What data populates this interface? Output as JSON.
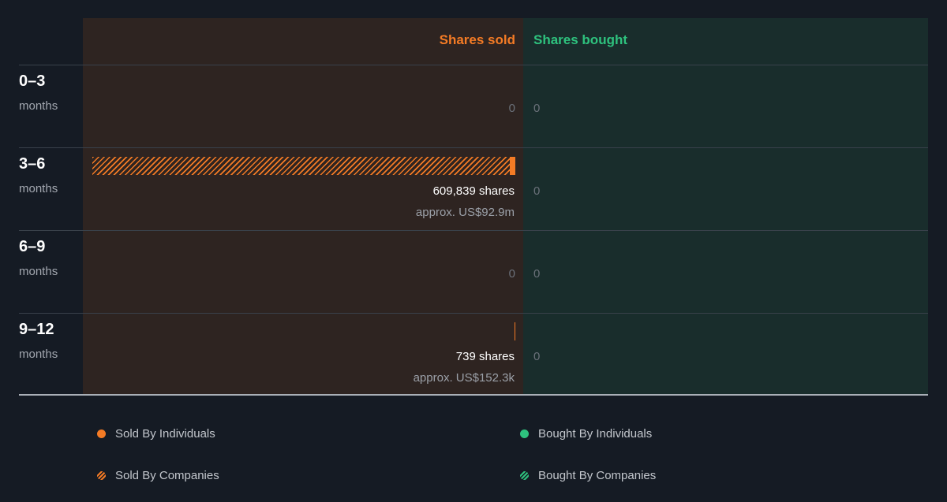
{
  "header": {
    "sold": "Shares sold",
    "bought": "Shares bought"
  },
  "colors": {
    "sold": "#f47b25",
    "bought": "#2ec27e"
  },
  "rows": [
    {
      "range": "0–3",
      "unit": "months",
      "sold_zero": "0",
      "bought_zero": "0"
    },
    {
      "range": "3–6",
      "unit": "months",
      "shares": "609,839 shares",
      "approx": "approx. US$92.9m",
      "bought_zero": "0"
    },
    {
      "range": "6–9",
      "unit": "months",
      "sold_zero": "0",
      "bought_zero": "0"
    },
    {
      "range": "9–12",
      "unit": "months",
      "shares": "739 shares",
      "approx": "approx. US$152.3k",
      "bought_zero": "0"
    }
  ],
  "legend": {
    "sold_individuals": "Sold By Individuals",
    "sold_companies": "Sold By Companies",
    "bought_individuals": "Bought By Individuals",
    "bought_companies": "Bought By Companies"
  },
  "chart_data": {
    "type": "bar",
    "orientation": "horizontal-diverging",
    "categories": [
      "0–3 months",
      "3–6 months",
      "6–9 months",
      "9–12 months"
    ],
    "series": [
      {
        "name": "Sold By Individuals",
        "values": [
          0,
          8000,
          0,
          739
        ]
      },
      {
        "name": "Sold By Companies",
        "values": [
          0,
          601839,
          0,
          0
        ]
      },
      {
        "name": "Bought By Individuals",
        "values": [
          0,
          0,
          0,
          0
        ]
      },
      {
        "name": "Bought By Companies",
        "values": [
          0,
          0,
          0,
          0
        ]
      }
    ],
    "sold_totals": [
      0,
      609839,
      0,
      739
    ],
    "bought_totals": [
      0,
      0,
      0,
      0
    ],
    "legend_position": "bottom"
  }
}
